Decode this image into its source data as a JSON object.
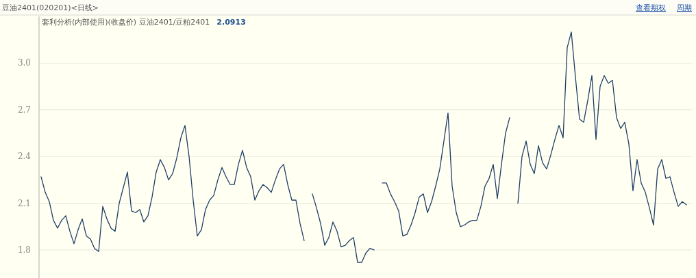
{
  "chart_data": {
    "type": "line",
    "title": "豆油2401(020201)<日线>",
    "subtitle": "套利分析(内部使用)(收盘价) 豆油2401/豆粕2401",
    "annotations": [
      "2.0913",
      "查看期权",
      "周期"
    ],
    "categories": [
      null,
      null,
      null,
      null,
      null,
      null,
      null,
      null,
      null,
      null,
      null,
      null,
      null,
      null,
      null,
      null,
      null,
      null,
      null,
      null,
      null,
      null,
      null,
      null,
      null,
      null,
      null,
      null,
      null,
      null,
      null,
      null,
      null,
      null,
      null,
      null,
      null,
      null,
      null,
      null,
      null,
      null,
      null,
      null,
      null,
      null,
      null,
      null,
      null,
      null,
      null,
      null,
      null,
      null,
      null,
      null,
      null,
      null,
      null,
      null,
      null,
      null,
      null,
      null,
      null,
      null,
      null,
      null,
      null,
      null,
      null,
      null,
      null,
      null,
      null,
      null,
      null,
      null,
      null,
      null,
      null,
      null,
      null,
      null,
      null,
      null,
      null,
      null,
      null,
      null,
      null,
      null,
      null,
      null,
      null,
      null,
      null,
      null,
      null,
      null,
      null,
      null,
      null,
      null,
      null,
      null,
      null,
      null,
      null,
      null,
      null,
      null,
      null,
      null,
      null,
      null,
      null,
      null,
      null,
      null,
      null,
      null,
      null,
      null,
      null,
      null,
      null,
      null,
      null,
      null,
      null,
      null,
      null,
      null,
      null,
      null,
      null,
      null,
      null,
      null,
      null,
      null,
      null,
      null,
      null,
      null,
      null,
      null,
      null,
      null,
      null,
      null,
      null,
      null,
      null,
      null,
      null,
      null,
      null
    ],
    "series": [
      {
        "color": "#1f3f66",
        "values": [
          2.27,
          2.17,
          2.11,
          1.99,
          1.94,
          1.99,
          2.02,
          1.92,
          1.84,
          1.93,
          2.0,
          1.89,
          1.87,
          1.81,
          1.79,
          2.08,
          2.0,
          1.94,
          1.92,
          2.1,
          2.2,
          2.3,
          2.05,
          2.04,
          2.06,
          1.98,
          2.02,
          2.14,
          2.3,
          2.38,
          2.33,
          2.25,
          2.29,
          2.39,
          2.52,
          2.6,
          2.4,
          2.12,
          1.89,
          1.93,
          2.06,
          2.12,
          2.15,
          2.25,
          2.33,
          2.27,
          2.22,
          2.22,
          2.35,
          2.44,
          2.33,
          2.27,
          2.12,
          2.18,
          2.22,
          2.2,
          2.17,
          2.25,
          2.32,
          2.35,
          2.22,
          2.12,
          2.12,
          1.97,
          1.86,
          null,
          2.16,
          2.07,
          1.97,
          1.83,
          1.88,
          1.98,
          1.92,
          1.82,
          1.83,
          1.86,
          1.88,
          1.72,
          1.72,
          1.78,
          1.81,
          1.8,
          null,
          2.23,
          2.23,
          2.16,
          2.11,
          2.05,
          1.89,
          1.9,
          1.96,
          2.04,
          2.14,
          2.16,
          2.04,
          2.11,
          2.21,
          2.32,
          2.5,
          2.68,
          2.21,
          2.04,
          1.95,
          1.96,
          1.98,
          1.99,
          1.99,
          2.08,
          2.21,
          2.26,
          2.35,
          2.13,
          2.35,
          2.55,
          2.65,
          null,
          2.1,
          2.4,
          2.5,
          2.35,
          2.29,
          2.47,
          2.36,
          2.32,
          2.41,
          2.51,
          2.6,
          2.52,
          3.1,
          3.2,
          2.91,
          2.64,
          2.62,
          2.76,
          2.92,
          2.51,
          2.85,
          2.92,
          2.87,
          2.89,
          2.65,
          2.58,
          2.62,
          2.48,
          2.18,
          2.38,
          2.23,
          2.17,
          2.07,
          1.96,
          2.32,
          2.38,
          2.26,
          2.27,
          2.17,
          2.08,
          2.11,
          2.09,
          null
        ]
      }
    ],
    "ylim": [
      1.62,
      3.3
    ],
    "yticks": [
      {
        "value": 1.8,
        "label": "1.8"
      },
      {
        "value": 2.1,
        "label": "2.1"
      },
      {
        "value": 2.4,
        "label": "2.4"
      },
      {
        "value": 2.7,
        "label": "2.7"
      },
      {
        "value": 3,
        "label": "3.0"
      }
    ],
    "grid": "y",
    "marker": "none",
    "line_style": "solid"
  }
}
